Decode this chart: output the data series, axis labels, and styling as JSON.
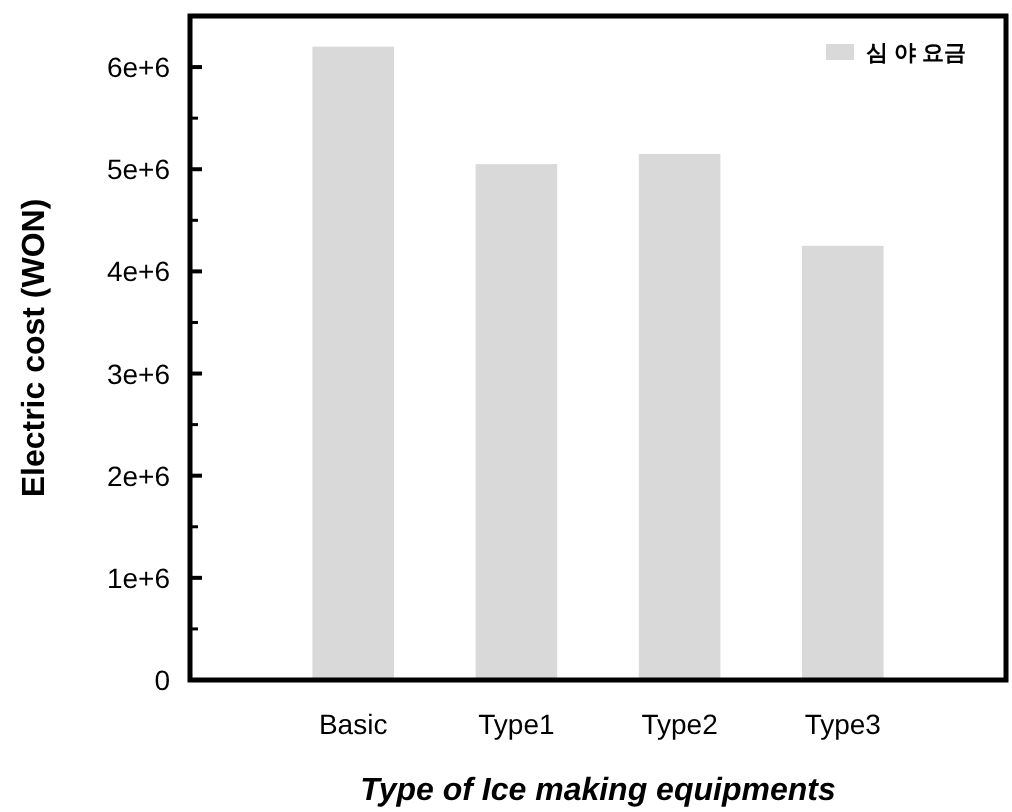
{
  "chart_data": {
    "type": "bar",
    "xlabel": "Type of Ice making equipments",
    "ylabel": "Electric cost (WON)",
    "categories": [
      "Basic",
      "Type1",
      "Type2",
      "Type3"
    ],
    "series": [
      {
        "name": "심 야 요금",
        "color": "#d9d9d9",
        "values": [
          6200000,
          5050000,
          5150000,
          4250000
        ]
      }
    ],
    "ylim": [
      0,
      6500000
    ],
    "yticks": [
      0,
      {
        "value": 1000000,
        "label": "1e+6"
      },
      {
        "value": 2000000,
        "label": "2e+6"
      },
      {
        "value": 3000000,
        "label": "3e+6"
      },
      {
        "value": 4000000,
        "label": "4e+6"
      },
      {
        "value": 5000000,
        "label": "5e+6"
      },
      {
        "value": 6000000,
        "label": "6e+6"
      }
    ],
    "grid": false,
    "legend": "top right"
  }
}
